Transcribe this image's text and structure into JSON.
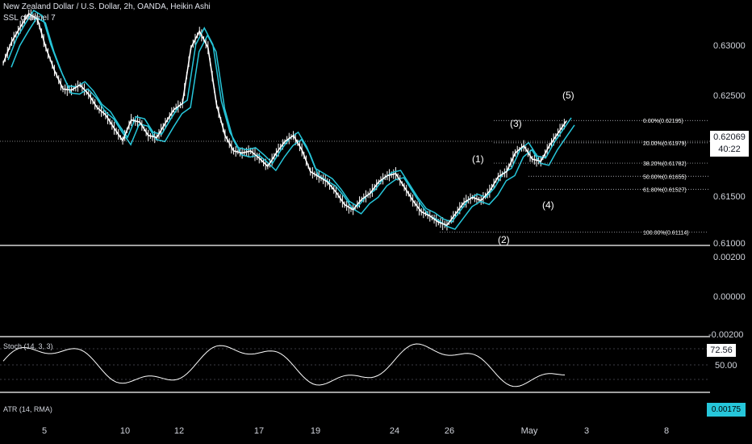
{
  "header": {
    "symbol_line": "New Zealand Dollar / U.S. Dollar, 2h, OANDA, Heikin Ashi",
    "indicator": "SSL channel 7"
  },
  "price_axis": [
    "0.63000",
    "0.62500",
    "0.62069",
    "0.61500",
    "0.61000"
  ],
  "current_price": {
    "price": "0.62069",
    "countdown": "40:22"
  },
  "fib_levels": [
    {
      "label": "0.00%(0.62195)",
      "price": 0.62195
    },
    {
      "label": "20.00%(0.61979)",
      "price": 0.61979
    },
    {
      "label": "38.20%(0.61782)",
      "price": 0.61782
    },
    {
      "label": "50.00%(0.61655)",
      "price": 0.61655
    },
    {
      "label": "61.80%(0.61527)",
      "price": 0.61527
    },
    {
      "label": "100.00%(0.61114)",
      "price": 0.61114
    }
  ],
  "waves": [
    "(1)",
    "(2)",
    "(3)",
    "(4)",
    "(5)"
  ],
  "oscillator_axis": [
    "0.00200",
    "0.00000",
    "-0.00200"
  ],
  "stoch": {
    "label": "Stoch (14, 3, 3)",
    "value": "72.56",
    "level": "50.00"
  },
  "atr": {
    "label": "ATR (14, RMA)",
    "value": "0.00175"
  },
  "time_axis": [
    "5",
    "10",
    "12",
    "17",
    "19",
    "24",
    "26",
    "May",
    "3",
    "8"
  ],
  "colors": {
    "background": "#000000",
    "ssl": "#26c6da",
    "candles": "#ffffff"
  },
  "chart_data": {
    "type": "line",
    "series": [
      {
        "values": [
          0.6275,
          0.6296,
          0.631,
          0.6323,
          0.6318,
          0.629,
          0.6268,
          0.625,
          0.6249,
          0.6254,
          0.6245,
          0.6232,
          0.6225,
          0.6212,
          0.62,
          0.622,
          0.6218,
          0.6205,
          0.6203,
          0.6217,
          0.623,
          0.6236,
          0.629,
          0.6306,
          0.629,
          0.6235,
          0.6205,
          0.619,
          0.6188,
          0.619,
          0.6183,
          0.6175,
          0.6188,
          0.6199,
          0.6205,
          0.6191,
          0.617,
          0.6165,
          0.616,
          0.615,
          0.6138,
          0.6133,
          0.6143,
          0.6149,
          0.616,
          0.6166,
          0.6168,
          0.6155,
          0.6142,
          0.6131,
          0.6127,
          0.6121,
          0.6118,
          0.6129,
          0.614,
          0.6145,
          0.6142,
          0.6151,
          0.6165,
          0.617,
          0.6188,
          0.6195,
          0.6182,
          0.618,
          0.6195,
          0.6207,
          0.6219
        ]
      }
    ],
    "ylim": [
      0.61,
      0.633
    ],
    "grid": false
  }
}
